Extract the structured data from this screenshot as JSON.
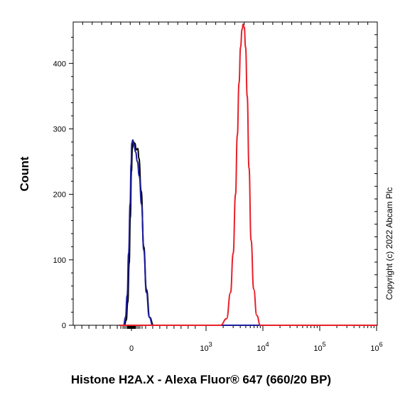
{
  "chart_data": {
    "type": "line",
    "title": "",
    "xlabel": "Histone H2A.X - Alexa Fluor® 647 (660/20 BP)",
    "ylabel": "Count",
    "copyright": "Copyright (c) 2022 Abcam Plc",
    "x_scale": "biexponential",
    "x_ticks": [
      {
        "value": 0,
        "label": "0"
      },
      {
        "value": 1000,
        "base": "10",
        "exp": "3"
      },
      {
        "value": 10000,
        "base": "10",
        "exp": "4"
      },
      {
        "value": 100000,
        "base": "10",
        "exp": "5"
      },
      {
        "value": 1000000,
        "base": "10",
        "exp": "6"
      }
    ],
    "y_ticks": [
      0,
      100,
      200,
      300,
      400
    ],
    "ylim": [
      0,
      460
    ],
    "grid": false,
    "series": [
      {
        "color": "#000000",
        "points": [
          [
            -170,
            0
          ],
          [
            -95,
            0
          ],
          [
            -70,
            8
          ],
          [
            -50,
            35
          ],
          [
            -30,
            95
          ],
          [
            -15,
            165
          ],
          [
            0,
            235
          ],
          [
            12,
            270
          ],
          [
            25,
            280
          ],
          [
            45,
            278
          ],
          [
            65,
            268
          ],
          [
            85,
            270
          ],
          [
            100,
            255
          ],
          [
            130,
            205
          ],
          [
            165,
            120
          ],
          [
            200,
            55
          ],
          [
            245,
            12
          ],
          [
            295,
            0
          ],
          [
            1000,
            0
          ],
          [
            1000000,
            0
          ]
        ]
      },
      {
        "color": "#1c1c9c",
        "points": [
          [
            -170,
            0
          ],
          [
            -105,
            0
          ],
          [
            -80,
            12
          ],
          [
            -58,
            45
          ],
          [
            -38,
            110
          ],
          [
            -18,
            185
          ],
          [
            -5,
            245
          ],
          [
            5,
            278
          ],
          [
            18,
            283
          ],
          [
            35,
            275
          ],
          [
            55,
            265
          ],
          [
            80,
            250
          ],
          [
            105,
            228
          ],
          [
            135,
            185
          ],
          [
            165,
            115
          ],
          [
            200,
            50
          ],
          [
            240,
            12
          ],
          [
            285,
            0
          ],
          [
            1000,
            0
          ],
          [
            1000000,
            0
          ]
        ]
      },
      {
        "color": "#e8202a",
        "points": [
          [
            -170,
            0
          ],
          [
            1000,
            0
          ],
          [
            1800,
            0
          ],
          [
            2300,
            10
          ],
          [
            2700,
            50
          ],
          [
            3000,
            110
          ],
          [
            3300,
            200
          ],
          [
            3550,
            290
          ],
          [
            3800,
            370
          ],
          [
            4050,
            425
          ],
          [
            4300,
            452
          ],
          [
            4500,
            460
          ],
          [
            4700,
            455
          ],
          [
            4950,
            425
          ],
          [
            5300,
            350
          ],
          [
            5700,
            240
          ],
          [
            6200,
            130
          ],
          [
            6900,
            55
          ],
          [
            7800,
            15
          ],
          [
            9000,
            0
          ],
          [
            10000,
            0
          ],
          [
            1000000,
            0
          ]
        ]
      }
    ]
  }
}
